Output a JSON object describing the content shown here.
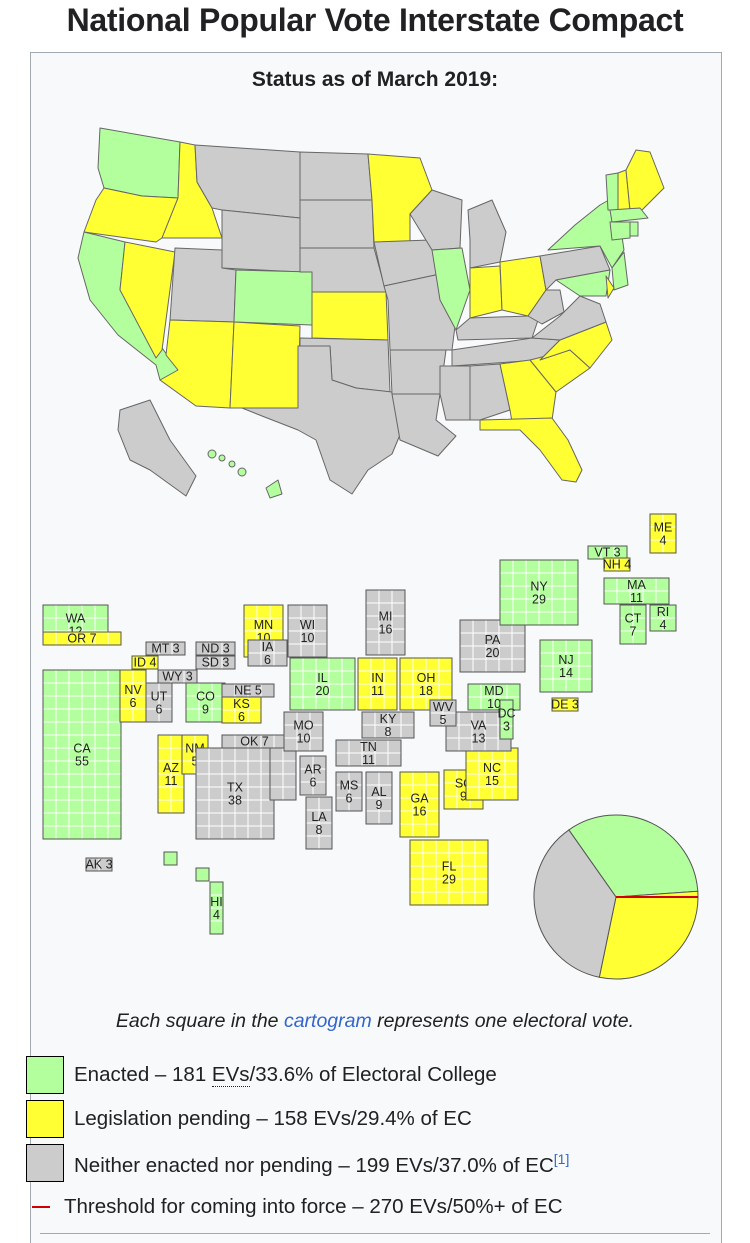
{
  "title": "National Popular Vote Interstate Compact",
  "subtitle": "Status as of March 2019:",
  "caption": {
    "before": "Each square in the ",
    "link": "cartogram",
    "after": " represents one electoral vote."
  },
  "colors": {
    "enacted": "#b3ff9e",
    "pending": "#ffff33",
    "neither": "#cccccc",
    "threshold": "#d00000",
    "border": "#555555"
  },
  "legend": [
    {
      "status": "enacted",
      "text_before": "Enacted – 181 ",
      "abbr": "EVs",
      "text_after": "/33.6% of Electoral College",
      "ref": ""
    },
    {
      "status": "pending",
      "text_before": "Legislation pending – 158 EVs/29.4% of EC",
      "abbr": "",
      "text_after": "",
      "ref": ""
    },
    {
      "status": "neither",
      "text_before": "Neither enacted nor pending – 199 EVs/37.0% of EC",
      "abbr": "",
      "text_after": "",
      "ref": "[1]"
    },
    {
      "status": "threshold",
      "text_before": "Threshold for coming into force – 270 EVs/50%+ of EC",
      "abbr": "",
      "text_after": "",
      "ref": ""
    }
  ],
  "pie": {
    "slices": [
      {
        "status": "enacted",
        "value": 181
      },
      {
        "status": "pending",
        "value": 158
      },
      {
        "status": "neither",
        "value": 199
      }
    ],
    "threshold": 270,
    "total": 538
  },
  "states": [
    {
      "abbr": "WA",
      "ev": "12",
      "status": "enacted"
    },
    {
      "abbr": "OR",
      "ev": "7",
      "status": "pending"
    },
    {
      "abbr": "CA",
      "ev": "55",
      "status": "enacted"
    },
    {
      "abbr": "NV",
      "ev": "6",
      "status": "pending"
    },
    {
      "abbr": "ID",
      "ev": "4",
      "status": "pending"
    },
    {
      "abbr": "MT",
      "ev": "3",
      "status": "neither"
    },
    {
      "abbr": "WY",
      "ev": "3",
      "status": "neither"
    },
    {
      "abbr": "UT",
      "ev": "6",
      "status": "neither"
    },
    {
      "abbr": "CO",
      "ev": "9",
      "status": "enacted"
    },
    {
      "abbr": "AZ",
      "ev": "11",
      "status": "pending"
    },
    {
      "abbr": "NM",
      "ev": "5",
      "status": "pending"
    },
    {
      "abbr": "ND",
      "ev": "3",
      "status": "neither"
    },
    {
      "abbr": "SD",
      "ev": "3",
      "status": "neither"
    },
    {
      "abbr": "NE",
      "ev": "5",
      "status": "neither"
    },
    {
      "abbr": "KS",
      "ev": "6",
      "status": "pending"
    },
    {
      "abbr": "OK",
      "ev": "7",
      "status": "neither"
    },
    {
      "abbr": "TX",
      "ev": "38",
      "status": "neither"
    },
    {
      "abbr": "MN",
      "ev": "10",
      "status": "pending"
    },
    {
      "abbr": "IA",
      "ev": "6",
      "status": "neither"
    },
    {
      "abbr": "MO",
      "ev": "10",
      "status": "neither"
    },
    {
      "abbr": "AR",
      "ev": "6",
      "status": "neither"
    },
    {
      "abbr": "LA",
      "ev": "8",
      "status": "neither"
    },
    {
      "abbr": "WI",
      "ev": "10",
      "status": "neither"
    },
    {
      "abbr": "IL",
      "ev": "20",
      "status": "enacted"
    },
    {
      "abbr": "MI",
      "ev": "16",
      "status": "neither"
    },
    {
      "abbr": "IN",
      "ev": "11",
      "status": "pending"
    },
    {
      "abbr": "OH",
      "ev": "18",
      "status": "pending"
    },
    {
      "abbr": "KY",
      "ev": "8",
      "status": "neither"
    },
    {
      "abbr": "TN",
      "ev": "11",
      "status": "neither"
    },
    {
      "abbr": "MS",
      "ev": "6",
      "status": "neither"
    },
    {
      "abbr": "AL",
      "ev": "9",
      "status": "neither"
    },
    {
      "abbr": "GA",
      "ev": "16",
      "status": "pending"
    },
    {
      "abbr": "FL",
      "ev": "29",
      "status": "pending"
    },
    {
      "abbr": "SC",
      "ev": "9",
      "status": "pending"
    },
    {
      "abbr": "NC",
      "ev": "15",
      "status": "pending"
    },
    {
      "abbr": "VA",
      "ev": "13",
      "status": "neither"
    },
    {
      "abbr": "WV",
      "ev": "5",
      "status": "neither"
    },
    {
      "abbr": "PA",
      "ev": "20",
      "status": "neither"
    },
    {
      "abbr": "MD",
      "ev": "10",
      "status": "enacted"
    },
    {
      "abbr": "DC",
      "ev": "3",
      "status": "enacted"
    },
    {
      "abbr": "DE",
      "ev": "3",
      "status": "pending"
    },
    {
      "abbr": "NJ",
      "ev": "14",
      "status": "enacted"
    },
    {
      "abbr": "NY",
      "ev": "29",
      "status": "enacted"
    },
    {
      "abbr": "CT",
      "ev": "7",
      "status": "enacted"
    },
    {
      "abbr": "RI",
      "ev": "4",
      "status": "enacted"
    },
    {
      "abbr": "MA",
      "ev": "11",
      "status": "enacted"
    },
    {
      "abbr": "VT",
      "ev": "3",
      "status": "enacted"
    },
    {
      "abbr": "NH",
      "ev": "4",
      "status": "pending"
    },
    {
      "abbr": "ME",
      "ev": "4",
      "status": "pending"
    },
    {
      "abbr": "AK",
      "ev": "3",
      "status": "neither"
    },
    {
      "abbr": "HI",
      "ev": "4",
      "status": "enacted"
    }
  ]
}
